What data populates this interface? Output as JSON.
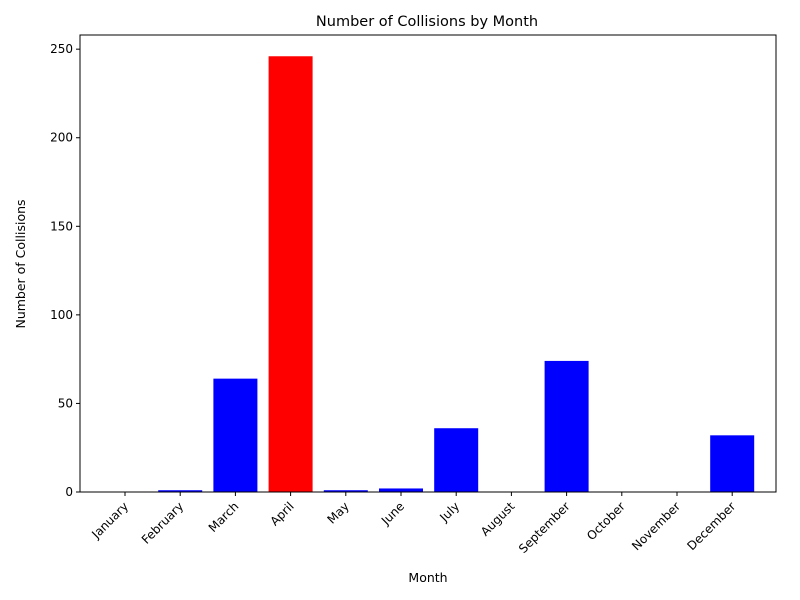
{
  "chart_data": {
    "type": "bar",
    "title": "Number of Collisions by Month",
    "xlabel": "Month",
    "ylabel": "Number of Collisions",
    "categories": [
      "January",
      "February",
      "March",
      "April",
      "May",
      "June",
      "July",
      "August",
      "September",
      "October",
      "November",
      "December"
    ],
    "values": [
      0,
      1,
      64,
      246,
      1,
      2,
      36,
      0,
      74,
      0,
      0,
      32
    ],
    "ylim": [
      0,
      258
    ],
    "yticks": [
      0,
      50,
      100,
      150,
      200,
      250
    ],
    "colors": {
      "default": "#0000ff",
      "highlight": "#ff0000"
    },
    "highlight_category": "April",
    "grid": false,
    "legend": "none"
  }
}
